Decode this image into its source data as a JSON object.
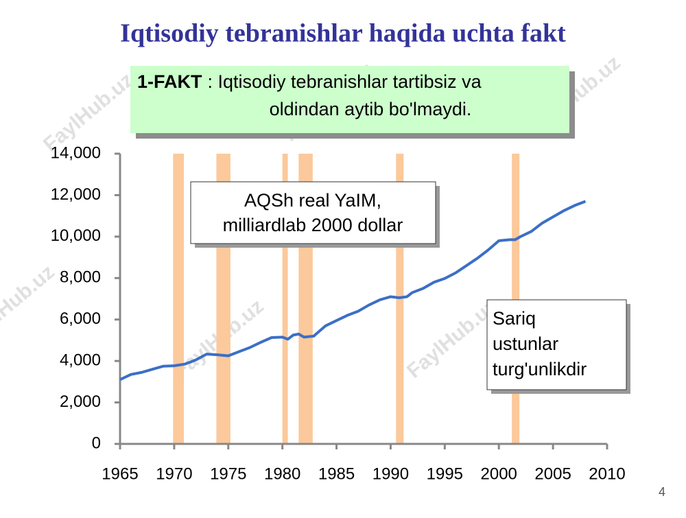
{
  "title": "Iqtisodiy tebranishlar haqida uchta fakt",
  "fact": {
    "label": "1-FAKT",
    "lines": [
      ": Iqtisodiy tebranishlar tartibsiz va",
      "oldindan aytib bo'lmaydi."
    ]
  },
  "watermark": "FaylHub.uz",
  "page_number": "4",
  "chart_data": {
    "type": "line",
    "annotations": [
      {
        "lines": [
          "AQSh real YaIM,",
          "milliardlab 2000 dollar"
        ]
      },
      {
        "lines": [
          "Sariq",
          "ustunlar",
          "turg'unlikdir"
        ]
      }
    ],
    "x": [
      1965,
      1966,
      1967,
      1968,
      1969,
      1970,
      1971,
      1972,
      1973,
      1974,
      1975,
      1976,
      1977,
      1978,
      1979,
      1980,
      1980.5,
      1981,
      1981.5,
      1982,
      1982.9,
      1983,
      1984,
      1985,
      1986,
      1987,
      1988,
      1989,
      1990,
      1990.8,
      1991.5,
      1992,
      1993,
      1994,
      1995,
      1996,
      1997,
      1998,
      1999,
      2000,
      2001,
      2001.5,
      2002,
      2003,
      2004,
      2005,
      2006,
      2007,
      2008
    ],
    "series": [
      {
        "name": "AQSh real YaIM",
        "color": "#3b6fc6",
        "values": [
          3100,
          3350,
          3450,
          3600,
          3750,
          3770,
          3850,
          4050,
          4330,
          4300,
          4250,
          4450,
          4650,
          4900,
          5130,
          5150,
          5050,
          5250,
          5300,
          5150,
          5200,
          5250,
          5700,
          5950,
          6200,
          6400,
          6700,
          6950,
          7100,
          7050,
          7100,
          7300,
          7500,
          7800,
          7980,
          8250,
          8600,
          8950,
          9350,
          9800,
          9850,
          9850,
          10000,
          10250,
          10650,
          10950,
          11250,
          11500,
          11700
        ]
      }
    ],
    "shaded_periods": [
      [
        1969.9,
        1970.9
      ],
      [
        1973.9,
        1975.2
      ],
      [
        1980,
        1980.5
      ],
      [
        1981.5,
        1982.8
      ],
      [
        1990.5,
        1991.2
      ],
      [
        2001.2,
        2001.9
      ]
    ],
    "shade_color": "#fbc99b",
    "xlim": [
      1965,
      2010
    ],
    "xticks": [
      1965,
      1970,
      1975,
      1980,
      1985,
      1990,
      1995,
      2000,
      2005,
      2010
    ],
    "ylim": [
      0,
      14000
    ],
    "yticks": [
      0,
      {
        "value": 2000,
        "label": "2,000"
      },
      {
        "value": 4000,
        "label": "4,000"
      },
      {
        "value": 6000,
        "label": "6,000"
      },
      {
        "value": 8000,
        "label": "8,000"
      },
      {
        "value": 10000,
        "label": "10,000"
      },
      {
        "value": 12000,
        "label": "12,000"
      },
      {
        "value": 14000,
        "label": "14,000"
      }
    ]
  }
}
